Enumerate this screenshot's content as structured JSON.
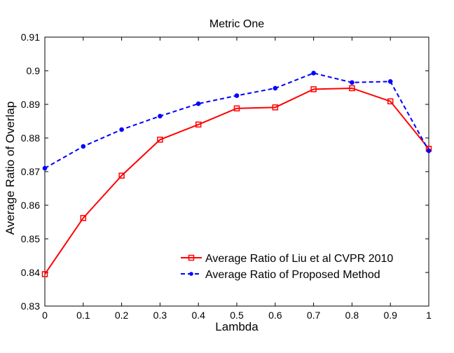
{
  "chart_data": {
    "type": "line",
    "title": "Metric One",
    "xlabel": "Lambda",
    "ylabel": "Average Ratio of Overlap",
    "xlim": [
      0,
      1
    ],
    "ylim": [
      0.83,
      0.91
    ],
    "x_ticks": [
      "0",
      "0.1",
      "0.2",
      "0.3",
      "0.4",
      "0.5",
      "0.6",
      "0.7",
      "0.8",
      "0.9",
      "1"
    ],
    "y_ticks": [
      "0.83",
      "0.84",
      "0.85",
      "0.86",
      "0.87",
      "0.88",
      "0.89",
      "0.9",
      "0.91"
    ],
    "grid": false,
    "legend_position": "bottom-right",
    "x": [
      0,
      0.1,
      0.2,
      0.3,
      0.4,
      0.5,
      0.6,
      0.7,
      0.8,
      0.9,
      1.0
    ],
    "series": [
      {
        "name": "Average Ratio of Liu et al CVPR 2010",
        "color": "#ff0000",
        "line_style": "solid",
        "marker": "square",
        "values": [
          0.8395,
          0.8562,
          0.8688,
          0.8795,
          0.884,
          0.8888,
          0.8891,
          0.8945,
          0.8948,
          0.8909,
          0.8768
        ]
      },
      {
        "name": "Average Ratio of Proposed Method",
        "color": "#0000ff",
        "line_style": "dashed",
        "marker": "dot",
        "values": [
          0.871,
          0.8775,
          0.8825,
          0.8865,
          0.8902,
          0.8926,
          0.8948,
          0.8993,
          0.8965,
          0.8968,
          0.8762
        ]
      }
    ]
  }
}
